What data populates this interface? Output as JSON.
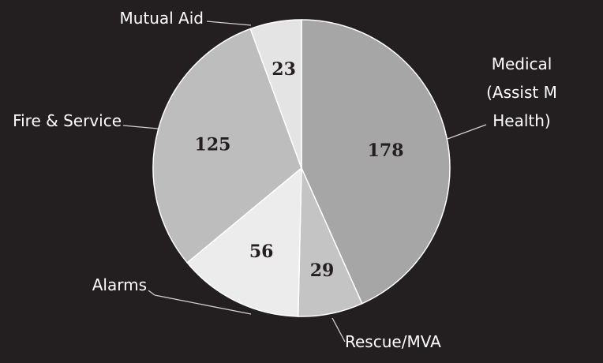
{
  "chart_data": {
    "type": "pie",
    "title": "",
    "slices": [
      {
        "label": "Medical (Assist M Health)",
        "label_lines": [
          "Medical",
          "(Assist M",
          "Health)"
        ],
        "value": 178,
        "color": "#a6a6a6"
      },
      {
        "label": "Rescue/MVA",
        "label_lines": [
          "Rescue/MVA"
        ],
        "value": 29,
        "color": "#c4c4c4"
      },
      {
        "label": "Alarms",
        "label_lines": [
          "Alarms"
        ],
        "value": 56,
        "color": "#ececec"
      },
      {
        "label": "Fire & Service",
        "label_lines": [
          "Fire & Service"
        ],
        "value": 125,
        "color": "#bdbdbd"
      },
      {
        "label": "Mutual Aid",
        "label_lines": [
          "Mutual Aid"
        ],
        "value": 23,
        "color": "#e4e4e4"
      }
    ],
    "start_angle": "12 o'clock",
    "direction": "clockwise",
    "legend": "none",
    "data_labels": "inside",
    "category_labels": "outside-with-leader-lines"
  }
}
